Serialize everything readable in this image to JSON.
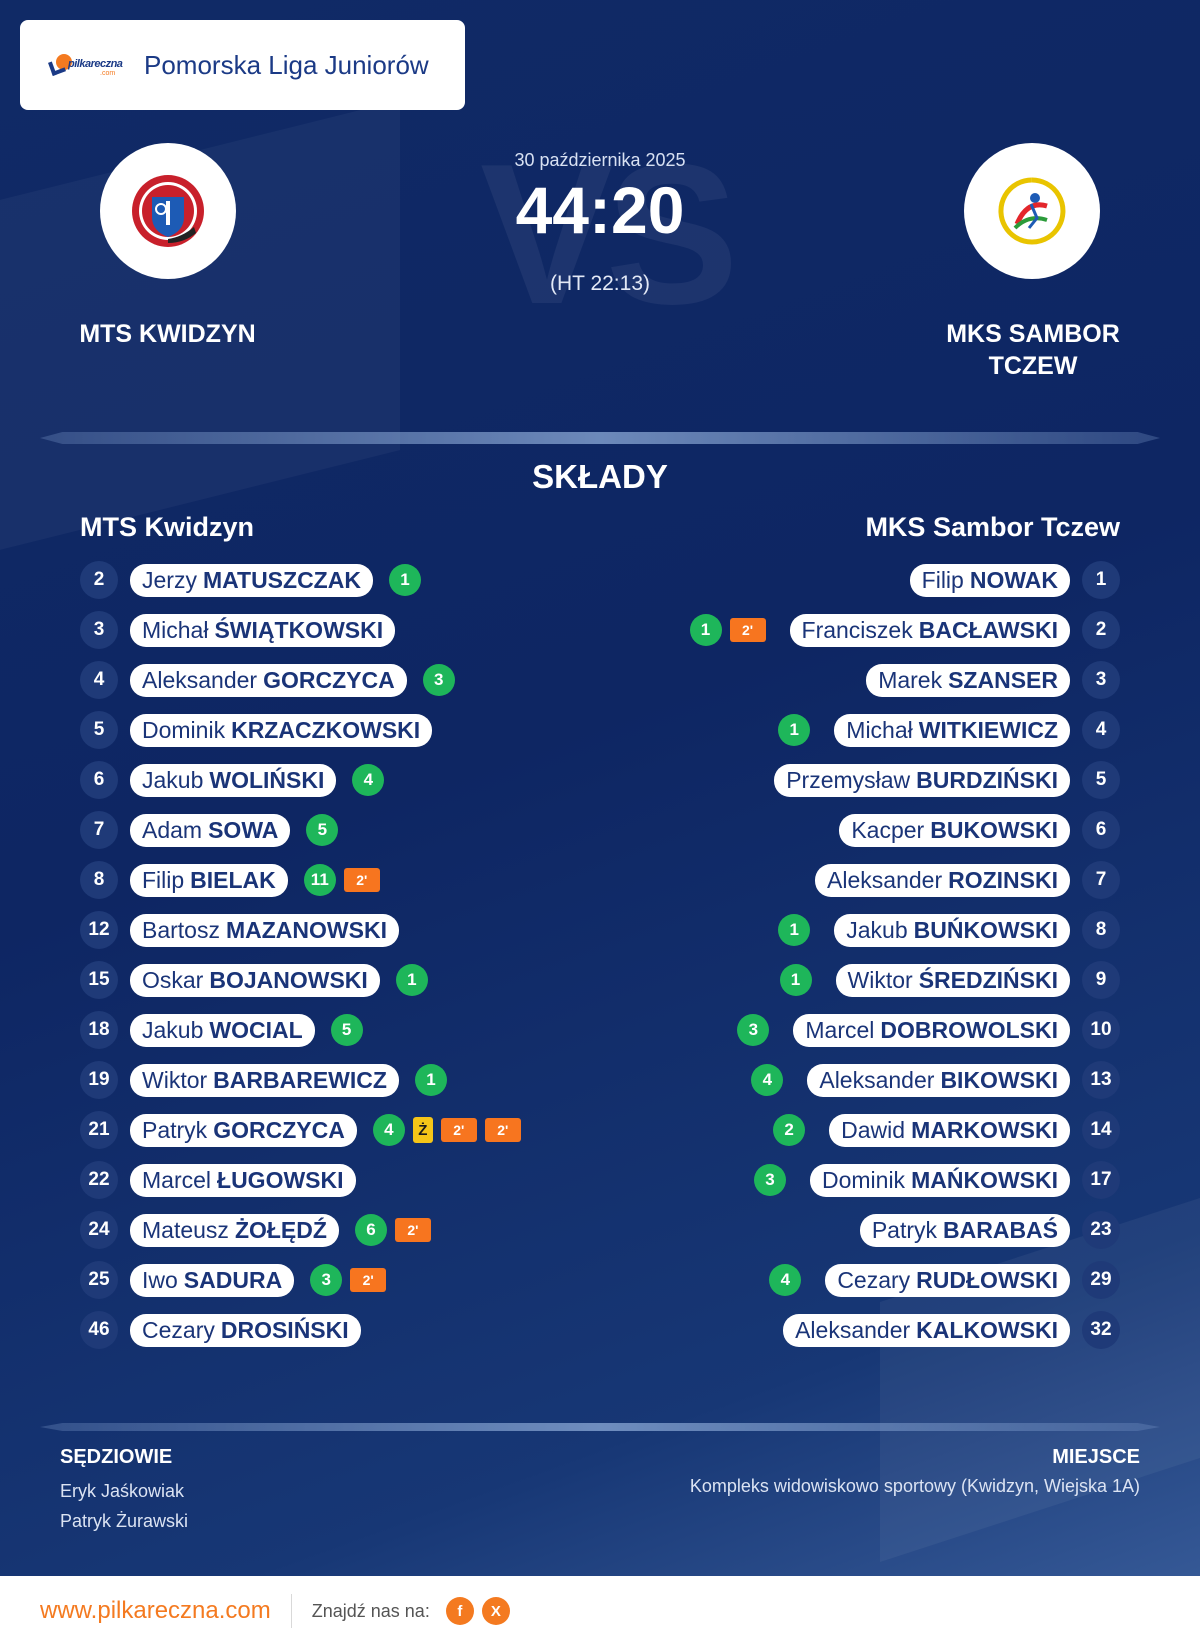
{
  "league": {
    "brand_logo_text": "pilkareczna",
    "brand_logo_sub": ".com",
    "name": "Pomorska Liga Juniorów"
  },
  "match": {
    "date": "30 października 2025",
    "score": "44:20",
    "halftime": "(HT 22:13)",
    "vs_watermark": "VS",
    "home_team": "MTS KWIDZYN",
    "away_team": "MKS SAMBOR TCZEW",
    "home_logo_icon": "mts-kwidzyn-crest-icon",
    "away_logo_icon": "sambor-tczew-crest-icon"
  },
  "lineups": {
    "title": "SKŁADY",
    "home": {
      "name": "MTS Kwidzyn",
      "players": [
        {
          "num": "2",
          "first": "Jerzy",
          "last": "MATUSZCZAK",
          "goals": "1",
          "yellow": false,
          "suspensions": []
        },
        {
          "num": "3",
          "first": "Michał",
          "last": "ŚWIĄTKOWSKI",
          "goals": "",
          "yellow": false,
          "suspensions": []
        },
        {
          "num": "4",
          "first": "Aleksander",
          "last": "GORCZYCA",
          "goals": "3",
          "yellow": false,
          "suspensions": []
        },
        {
          "num": "5",
          "first": "Dominik",
          "last": "KRZACZKOWSKI",
          "goals": "",
          "yellow": false,
          "suspensions": []
        },
        {
          "num": "6",
          "first": "Jakub",
          "last": "WOLIŃSKI",
          "goals": "4",
          "yellow": false,
          "suspensions": []
        },
        {
          "num": "7",
          "first": "Adam",
          "last": "SOWA",
          "goals": "5",
          "yellow": false,
          "suspensions": []
        },
        {
          "num": "8",
          "first": "Filip",
          "last": "BIELAK",
          "goals": "11",
          "yellow": false,
          "suspensions": [
            "2'"
          ]
        },
        {
          "num": "12",
          "first": "Bartosz",
          "last": "MAZANOWSKI",
          "goals": "",
          "yellow": false,
          "suspensions": []
        },
        {
          "num": "15",
          "first": "Oskar",
          "last": "BOJANOWSKI",
          "goals": "1",
          "yellow": false,
          "suspensions": []
        },
        {
          "num": "18",
          "first": "Jakub",
          "last": "WOCIAL",
          "goals": "5",
          "yellow": false,
          "suspensions": []
        },
        {
          "num": "19",
          "first": "Wiktor",
          "last": "BARBAREWICZ",
          "goals": "1",
          "yellow": false,
          "suspensions": []
        },
        {
          "num": "21",
          "first": "Patryk",
          "last": "GORCZYCA",
          "goals": "4",
          "yellow": true,
          "suspensions": [
            "2'",
            "2'"
          ]
        },
        {
          "num": "22",
          "first": "Marcel",
          "last": "ŁUGOWSKI",
          "goals": "",
          "yellow": false,
          "suspensions": []
        },
        {
          "num": "24",
          "first": "Mateusz",
          "last": "ŻOŁĘDŹ",
          "goals": "6",
          "yellow": false,
          "suspensions": [
            "2'"
          ]
        },
        {
          "num": "25",
          "first": "Iwo",
          "last": "SADURA",
          "goals": "3",
          "yellow": false,
          "suspensions": [
            "2'"
          ]
        },
        {
          "num": "46",
          "first": "Cezary",
          "last": "DROSIŃSKI",
          "goals": "",
          "yellow": false,
          "suspensions": []
        }
      ]
    },
    "away": {
      "name": "MKS Sambor Tczew",
      "players": [
        {
          "num": "1",
          "first": "Filip",
          "last": "NOWAK",
          "goals": "",
          "yellow": false,
          "suspensions": []
        },
        {
          "num": "2",
          "first": "Franciszek",
          "last": "BACŁAWSKI",
          "goals": "1",
          "yellow": false,
          "suspensions": [
            "2'"
          ]
        },
        {
          "num": "3",
          "first": "Marek",
          "last": "SZANSER",
          "goals": "",
          "yellow": false,
          "suspensions": []
        },
        {
          "num": "4",
          "first": "Michał",
          "last": "WITKIEWICZ",
          "goals": "1",
          "yellow": false,
          "suspensions": []
        },
        {
          "num": "5",
          "first": "Przemysław",
          "last": "BURDZIŃSKI",
          "goals": "",
          "yellow": false,
          "suspensions": []
        },
        {
          "num": "6",
          "first": "Kacper",
          "last": "BUKOWSKI",
          "goals": "",
          "yellow": false,
          "suspensions": []
        },
        {
          "num": "7",
          "first": "Aleksander",
          "last": "ROZINSKI",
          "goals": "",
          "yellow": false,
          "suspensions": []
        },
        {
          "num": "8",
          "first": "Jakub",
          "last": "BUŃKOWSKI",
          "goals": "1",
          "yellow": false,
          "suspensions": []
        },
        {
          "num": "9",
          "first": "Wiktor",
          "last": "ŚREDZIŃSKI",
          "goals": "1",
          "yellow": false,
          "suspensions": []
        },
        {
          "num": "10",
          "first": "Marcel",
          "last": "DOBROWOLSKI",
          "goals": "3",
          "yellow": false,
          "suspensions": []
        },
        {
          "num": "13",
          "first": "Aleksander",
          "last": "BIKOWSKI",
          "goals": "4",
          "yellow": false,
          "suspensions": []
        },
        {
          "num": "14",
          "first": "Dawid",
          "last": "MARKOWSKI",
          "goals": "2",
          "yellow": false,
          "suspensions": []
        },
        {
          "num": "17",
          "first": "Dominik",
          "last": "MAŃKOWSKI",
          "goals": "3",
          "yellow": false,
          "suspensions": []
        },
        {
          "num": "23",
          "first": "Patryk",
          "last": "BARABAŚ",
          "goals": "",
          "yellow": false,
          "suspensions": []
        },
        {
          "num": "29",
          "first": "Cezary",
          "last": "RUDŁOWSKI",
          "goals": "4",
          "yellow": false,
          "suspensions": []
        },
        {
          "num": "32",
          "first": "Aleksander",
          "last": "KALKOWSKI",
          "goals": "",
          "yellow": false,
          "suspensions": []
        }
      ]
    }
  },
  "referees": {
    "title": "SĘDZIOWIE",
    "names": [
      "Eryk Jaśkowiak",
      "Patryk Żurawski"
    ]
  },
  "venue": {
    "title": "MIEJSCE",
    "text": "Kompleks widowiskowo sportowy (Kwidzyn, Wiejska 1A)"
  },
  "footer": {
    "site": "www.pilkareczna.com",
    "find_us": "Znajdź nas na:",
    "socials": [
      {
        "icon": "facebook-icon",
        "glyph": "f"
      },
      {
        "icon": "x-icon",
        "glyph": "X"
      }
    ]
  },
  "colors": {
    "goal": "#1eb65a",
    "suspension": "#f7751f",
    "yellow_card": "#f5c518",
    "brand": "#f47a20",
    "navy": "#1a3478"
  }
}
